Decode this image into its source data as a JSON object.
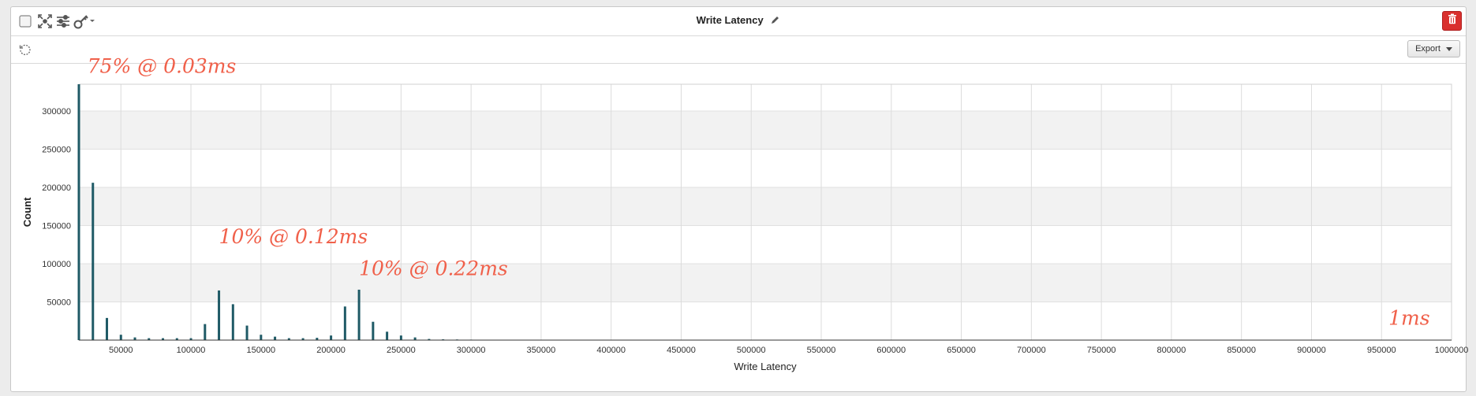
{
  "panel": {
    "title": "Write Latency",
    "export_label": "Export"
  },
  "icons": {
    "select": "checkbox-icon",
    "fit": "fit-to-view-icon",
    "settings": "sliders-icon",
    "key": "key-icon",
    "edit": "pencil-icon",
    "delete": "trash-icon",
    "refresh": "refresh-icon",
    "export_caret": "chevron-down-icon"
  },
  "colors": {
    "bar": "#1f5a66",
    "annotation": "#f0604a",
    "delete_button": "#d9302e",
    "band": "#f2f2f2"
  },
  "chart_data": {
    "type": "bar",
    "xlabel": "Write Latency",
    "ylabel": "Count",
    "xlim": [
      20000,
      1000000
    ],
    "ylim": [
      0,
      335000
    ],
    "x_ticks": [
      50000,
      100000,
      150000,
      200000,
      250000,
      300000,
      350000,
      400000,
      450000,
      500000,
      550000,
      600000,
      650000,
      700000,
      750000,
      800000,
      850000,
      900000,
      950000,
      1000000
    ],
    "y_ticks": [
      50000,
      100000,
      150000,
      200000,
      250000,
      300000
    ],
    "grid": true,
    "points": [
      {
        "x": 20000,
        "y": 335000
      },
      {
        "x": 30000,
        "y": 206000
      },
      {
        "x": 40000,
        "y": 29000
      },
      {
        "x": 50000,
        "y": 7000
      },
      {
        "x": 60000,
        "y": 3500
      },
      {
        "x": 70000,
        "y": 2500
      },
      {
        "x": 80000,
        "y": 2500
      },
      {
        "x": 90000,
        "y": 2500
      },
      {
        "x": 100000,
        "y": 2500
      },
      {
        "x": 110000,
        "y": 21000
      },
      {
        "x": 120000,
        "y": 65000
      },
      {
        "x": 130000,
        "y": 47000
      },
      {
        "x": 140000,
        "y": 19000
      },
      {
        "x": 150000,
        "y": 7000
      },
      {
        "x": 160000,
        "y": 4500
      },
      {
        "x": 170000,
        "y": 2500
      },
      {
        "x": 180000,
        "y": 2500
      },
      {
        "x": 190000,
        "y": 3000
      },
      {
        "x": 200000,
        "y": 6000
      },
      {
        "x": 210000,
        "y": 44000
      },
      {
        "x": 220000,
        "y": 66000
      },
      {
        "x": 230000,
        "y": 24000
      },
      {
        "x": 240000,
        "y": 11000
      },
      {
        "x": 250000,
        "y": 6000
      },
      {
        "x": 260000,
        "y": 3500
      },
      {
        "x": 270000,
        "y": 1500
      },
      {
        "x": 280000,
        "y": 1000
      },
      {
        "x": 290000,
        "y": 800
      },
      {
        "x": 300000,
        "y": 600
      },
      {
        "x": 310000,
        "y": 500
      }
    ],
    "annotations": [
      {
        "text": "75% @ 0.03ms",
        "x": 26000,
        "y": 350000
      },
      {
        "text": "10% @ 0.12ms",
        "x": 120000,
        "y": 127000
      },
      {
        "text": "10% @ 0.22ms",
        "x": 220000,
        "y": 85000
      },
      {
        "text": "1ms",
        "x": 955000,
        "y": 20000
      }
    ]
  }
}
